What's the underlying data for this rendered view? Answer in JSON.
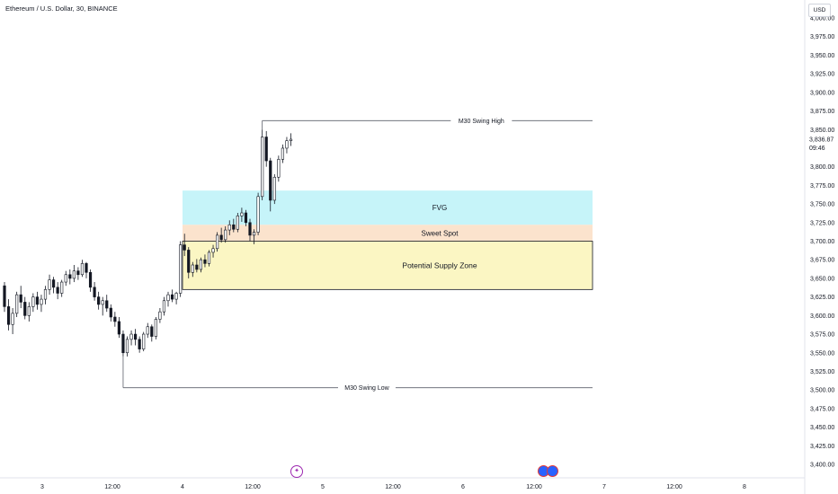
{
  "header": {
    "title": "Ethereum / U.S. Dollar, 30, BINANCE",
    "currency": "USD"
  },
  "price_scale": {
    "labels": [
      "3,400.00",
      "3,425.00",
      "3,450.00",
      "3,475.00",
      "3,500.00",
      "3,525.00",
      "3,550.00",
      "3,575.00",
      "3,600.00",
      "3,625.00",
      "3,650.00",
      "3,675.00",
      "3,700.00",
      "3,725.00",
      "3,750.00",
      "3,775.00",
      "3,800.00",
      "3,825.00",
      "3,850.00",
      "3,875.00",
      "3,900.00",
      "3,925.00",
      "3,950.00",
      "3,975.00",
      "4,000.00"
    ],
    "current_price": "3,836.87",
    "countdown": "09:46"
  },
  "time_scale": {
    "labels": [
      "3",
      "12:00",
      "4",
      "12:00",
      "5",
      "12:00",
      "6",
      "12:00",
      "7",
      "12:00",
      "8"
    ]
  },
  "annotations": {
    "swing_high": "M30 Swing High",
    "swing_low": "M30 Swing Low",
    "fvg": "FVG",
    "sweet_spot": "Sweet Spot",
    "supply_zone": "Potential Supply Zone"
  },
  "colors": {
    "fvg": "#c6f4f9",
    "sweet_spot": "#fbe3cd",
    "supply_zone": "#fbf6c3",
    "candle_up": "#ffffff",
    "candle_down": "#131722",
    "line": "#5d606b"
  },
  "chart_data": {
    "type": "candlestick",
    "symbol": "Ethereum / U.S. Dollar",
    "timeframe": "30",
    "exchange": "BINANCE",
    "ylim": [
      3390,
      4010
    ],
    "x_ticks": [
      "3",
      "12:00",
      "4",
      "12:00",
      "5",
      "12:00",
      "6",
      "12:00",
      "7",
      "12:00",
      "8"
    ],
    "levels": [
      {
        "label": "M30 Swing High",
        "price": 3862
      },
      {
        "label": "M30 Swing Low",
        "price": 3503
      }
    ],
    "zones": [
      {
        "label": "FVG",
        "top": 3768,
        "bottom": 3722
      },
      {
        "label": "Sweet Spot",
        "top": 3722,
        "bottom": 3700
      },
      {
        "label": "Potential Supply Zone",
        "top": 3700,
        "bottom": 3635
      }
    ],
    "ohlc": [
      [
        3640,
        3645,
        3605,
        3612
      ],
      [
        3612,
        3622,
        3580,
        3588
      ],
      [
        3588,
        3610,
        3575,
        3603
      ],
      [
        3603,
        3632,
        3598,
        3628
      ],
      [
        3628,
        3640,
        3610,
        3618
      ],
      [
        3618,
        3625,
        3595,
        3600
      ],
      [
        3600,
        3618,
        3592,
        3612
      ],
      [
        3612,
        3630,
        3605,
        3625
      ],
      [
        3625,
        3632,
        3608,
        3615
      ],
      [
        3615,
        3628,
        3605,
        3622
      ],
      [
        3622,
        3640,
        3615,
        3635
      ],
      [
        3635,
        3655,
        3628,
        3648
      ],
      [
        3648,
        3652,
        3630,
        3638
      ],
      [
        3638,
        3645,
        3622,
        3630
      ],
      [
        3630,
        3648,
        3625,
        3645
      ],
      [
        3645,
        3660,
        3640,
        3655
      ],
      [
        3655,
        3662,
        3642,
        3650
      ],
      [
        3650,
        3668,
        3645,
        3660
      ],
      [
        3660,
        3665,
        3648,
        3655
      ],
      [
        3655,
        3675,
        3652,
        3670
      ],
      [
        3670,
        3672,
        3650,
        3658
      ],
      [
        3658,
        3662,
        3632,
        3638
      ],
      [
        3638,
        3645,
        3620,
        3625
      ],
      [
        3625,
        3632,
        3608,
        3615
      ],
      [
        3615,
        3625,
        3600,
        3620
      ],
      [
        3620,
        3628,
        3605,
        3610
      ],
      [
        3610,
        3615,
        3592,
        3598
      ],
      [
        3598,
        3605,
        3585,
        3592
      ],
      [
        3592,
        3598,
        3570,
        3575
      ],
      [
        3575,
        3580,
        3545,
        3550
      ],
      [
        3550,
        3572,
        3545,
        3568
      ],
      [
        3568,
        3580,
        3560,
        3575
      ],
      [
        3575,
        3582,
        3560,
        3568
      ],
      [
        3568,
        3572,
        3550,
        3555
      ],
      [
        3555,
        3578,
        3552,
        3575
      ],
      [
        3575,
        3590,
        3570,
        3585
      ],
      [
        3585,
        3588,
        3565,
        3572
      ],
      [
        3572,
        3598,
        3568,
        3595
      ],
      [
        3595,
        3610,
        3590,
        3605
      ],
      [
        3605,
        3625,
        3600,
        3620
      ],
      [
        3620,
        3632,
        3612,
        3628
      ],
      [
        3628,
        3635,
        3618,
        3622
      ],
      [
        3622,
        3632,
        3615,
        3630
      ],
      [
        3630,
        3700,
        3625,
        3695
      ],
      [
        3695,
        3710,
        3680,
        3688
      ],
      [
        3688,
        3692,
        3650,
        3658
      ],
      [
        3658,
        3672,
        3652,
        3668
      ],
      [
        3668,
        3676,
        3658,
        3662
      ],
      [
        3662,
        3678,
        3658,
        3675
      ],
      [
        3675,
        3682,
        3665,
        3670
      ],
      [
        3670,
        3688,
        3666,
        3685
      ],
      [
        3685,
        3695,
        3678,
        3690
      ],
      [
        3690,
        3712,
        3686,
        3708
      ],
      [
        3708,
        3718,
        3698,
        3702
      ],
      [
        3702,
        3720,
        3698,
        3715
      ],
      [
        3715,
        3728,
        3708,
        3722
      ],
      [
        3722,
        3730,
        3712,
        3716
      ],
      [
        3716,
        3738,
        3712,
        3734
      ],
      [
        3734,
        3745,
        3726,
        3738
      ],
      [
        3738,
        3742,
        3720,
        3725
      ],
      [
        3725,
        3730,
        3700,
        3708
      ],
      [
        3708,
        3716,
        3696,
        3712
      ],
      [
        3712,
        3765,
        3708,
        3760
      ],
      [
        3760,
        3850,
        3755,
        3840
      ],
      [
        3840,
        3848,
        3800,
        3808
      ],
      [
        3808,
        3812,
        3740,
        3755
      ],
      [
        3755,
        3790,
        3750,
        3786
      ],
      [
        3786,
        3815,
        3780,
        3810
      ],
      [
        3810,
        3830,
        3805,
        3825
      ],
      [
        3825,
        3840,
        3818,
        3835
      ],
      [
        3835,
        3845,
        3828,
        3837
      ]
    ]
  }
}
